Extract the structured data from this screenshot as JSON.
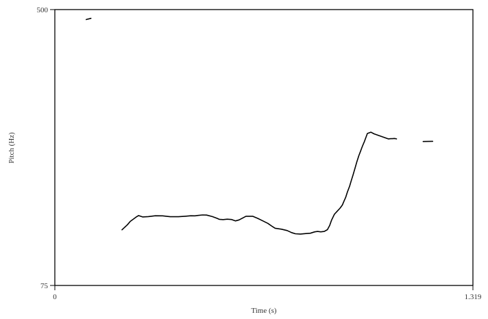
{
  "chart_data": {
    "type": "line",
    "title": "",
    "xlabel": "Time (s)",
    "ylabel": "Pitch (Hz)",
    "xlim": [
      0,
      1.319
    ],
    "ylim": [
      75,
      500
    ],
    "x_tick_labels": [
      "0",
      "1.319"
    ],
    "y_tick_labels": [
      "75",
      "500"
    ],
    "grid": false,
    "line_color": "#000000",
    "series": [
      {
        "segments": [
          {
            "x": [
              0.099,
              0.114
            ],
            "y": [
              484.7,
              486.5
            ]
          },
          {
            "x": [
              0.212,
              0.229,
              0.238,
              0.247,
              0.256,
              0.264,
              0.277,
              0.295,
              0.317,
              0.34,
              0.364,
              0.39,
              0.414,
              0.429,
              0.442,
              0.452,
              0.466,
              0.479,
              0.497,
              0.51,
              0.519,
              0.531,
              0.544,
              0.558,
              0.57,
              0.581,
              0.603,
              0.624,
              0.64,
              0.652,
              0.672,
              0.687,
              0.695,
              0.715,
              0.733,
              0.747,
              0.759,
              0.775,
              0.792,
              0.806,
              0.82,
              0.829,
              0.839,
              0.85,
              0.86,
              0.867,
              0.873,
              0.882,
              0.891,
              0.9,
              0.907,
              0.912,
              0.918,
              0.923,
              0.93,
              0.935,
              0.941,
              0.947,
              0.953,
              0.959,
              0.964,
              0.97,
              0.977,
              0.986,
              0.997,
              1.007,
              1.052,
              1.06,
              1.065,
              1.071,
              1.075,
              1.078
            ],
            "y": [
              160.7,
              168.5,
              173.7,
              176.9,
              180.3,
              182.7,
              180.6,
              181.1,
              182.4,
              182.2,
              180.9,
              180.9,
              181.7,
              182.4,
              182.2,
              182.9,
              183.6,
              183.4,
              181.1,
              178.8,
              176.9,
              176.5,
              177.1,
              176.6,
              174.5,
              175.9,
              181.6,
              181.6,
              178.4,
              175.5,
              170.6,
              165.6,
              163.2,
              161.7,
              159.6,
              156.4,
              154.6,
              154.2,
              154.9,
              155.5,
              157.6,
              158.2,
              157.6,
              158.2,
              160.9,
              167.4,
              175.5,
              184.7,
              189.5,
              194.2,
              198.9,
              204.6,
              211.1,
              219.1,
              227.9,
              236.1,
              245.6,
              255.8,
              265.7,
              274.8,
              281.1,
              289.1,
              297.1,
              309.1,
              311.1,
              308.6,
              300.8,
              301.1,
              301.1,
              301.4,
              301.1,
              300.8
            ]
          },
          {
            "x": [
              1.162,
              1.192
            ],
            "y": [
              296.8,
              297.1
            ]
          }
        ]
      }
    ]
  }
}
